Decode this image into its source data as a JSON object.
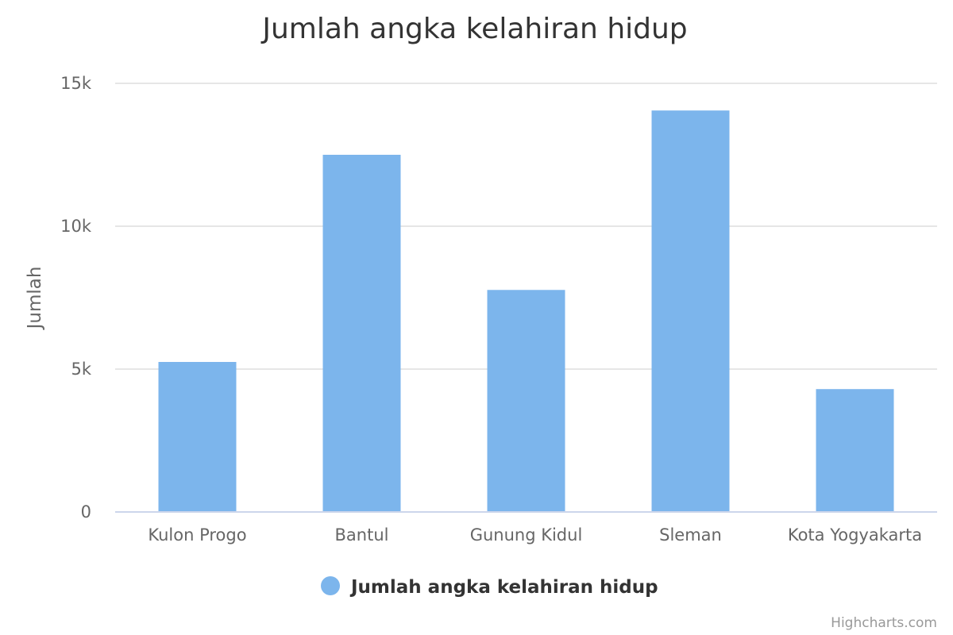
{
  "chart_data": {
    "type": "bar",
    "title": "Jumlah angka kelahiran hidup",
    "xlabel": "",
    "ylabel": "Jumlah",
    "categories": [
      "Kulon Progo",
      "Bantul",
      "Gunung Kidul",
      "Sleman",
      "Kota Yogyakarta"
    ],
    "series": [
      {
        "name": "Jumlah angka kelahiran hidup",
        "values": [
          5250,
          12500,
          7770,
          14050,
          4300
        ]
      }
    ],
    "ylim": [
      0,
      15000
    ],
    "yticks": [
      0,
      5000,
      10000,
      15000
    ],
    "ytick_labels": [
      "0",
      "5k",
      "10k",
      "15k"
    ],
    "grid": true,
    "legend_position": "bottom-center",
    "colors": {
      "bar": "#7cb5ec"
    }
  },
  "credits": "Highcharts.com"
}
